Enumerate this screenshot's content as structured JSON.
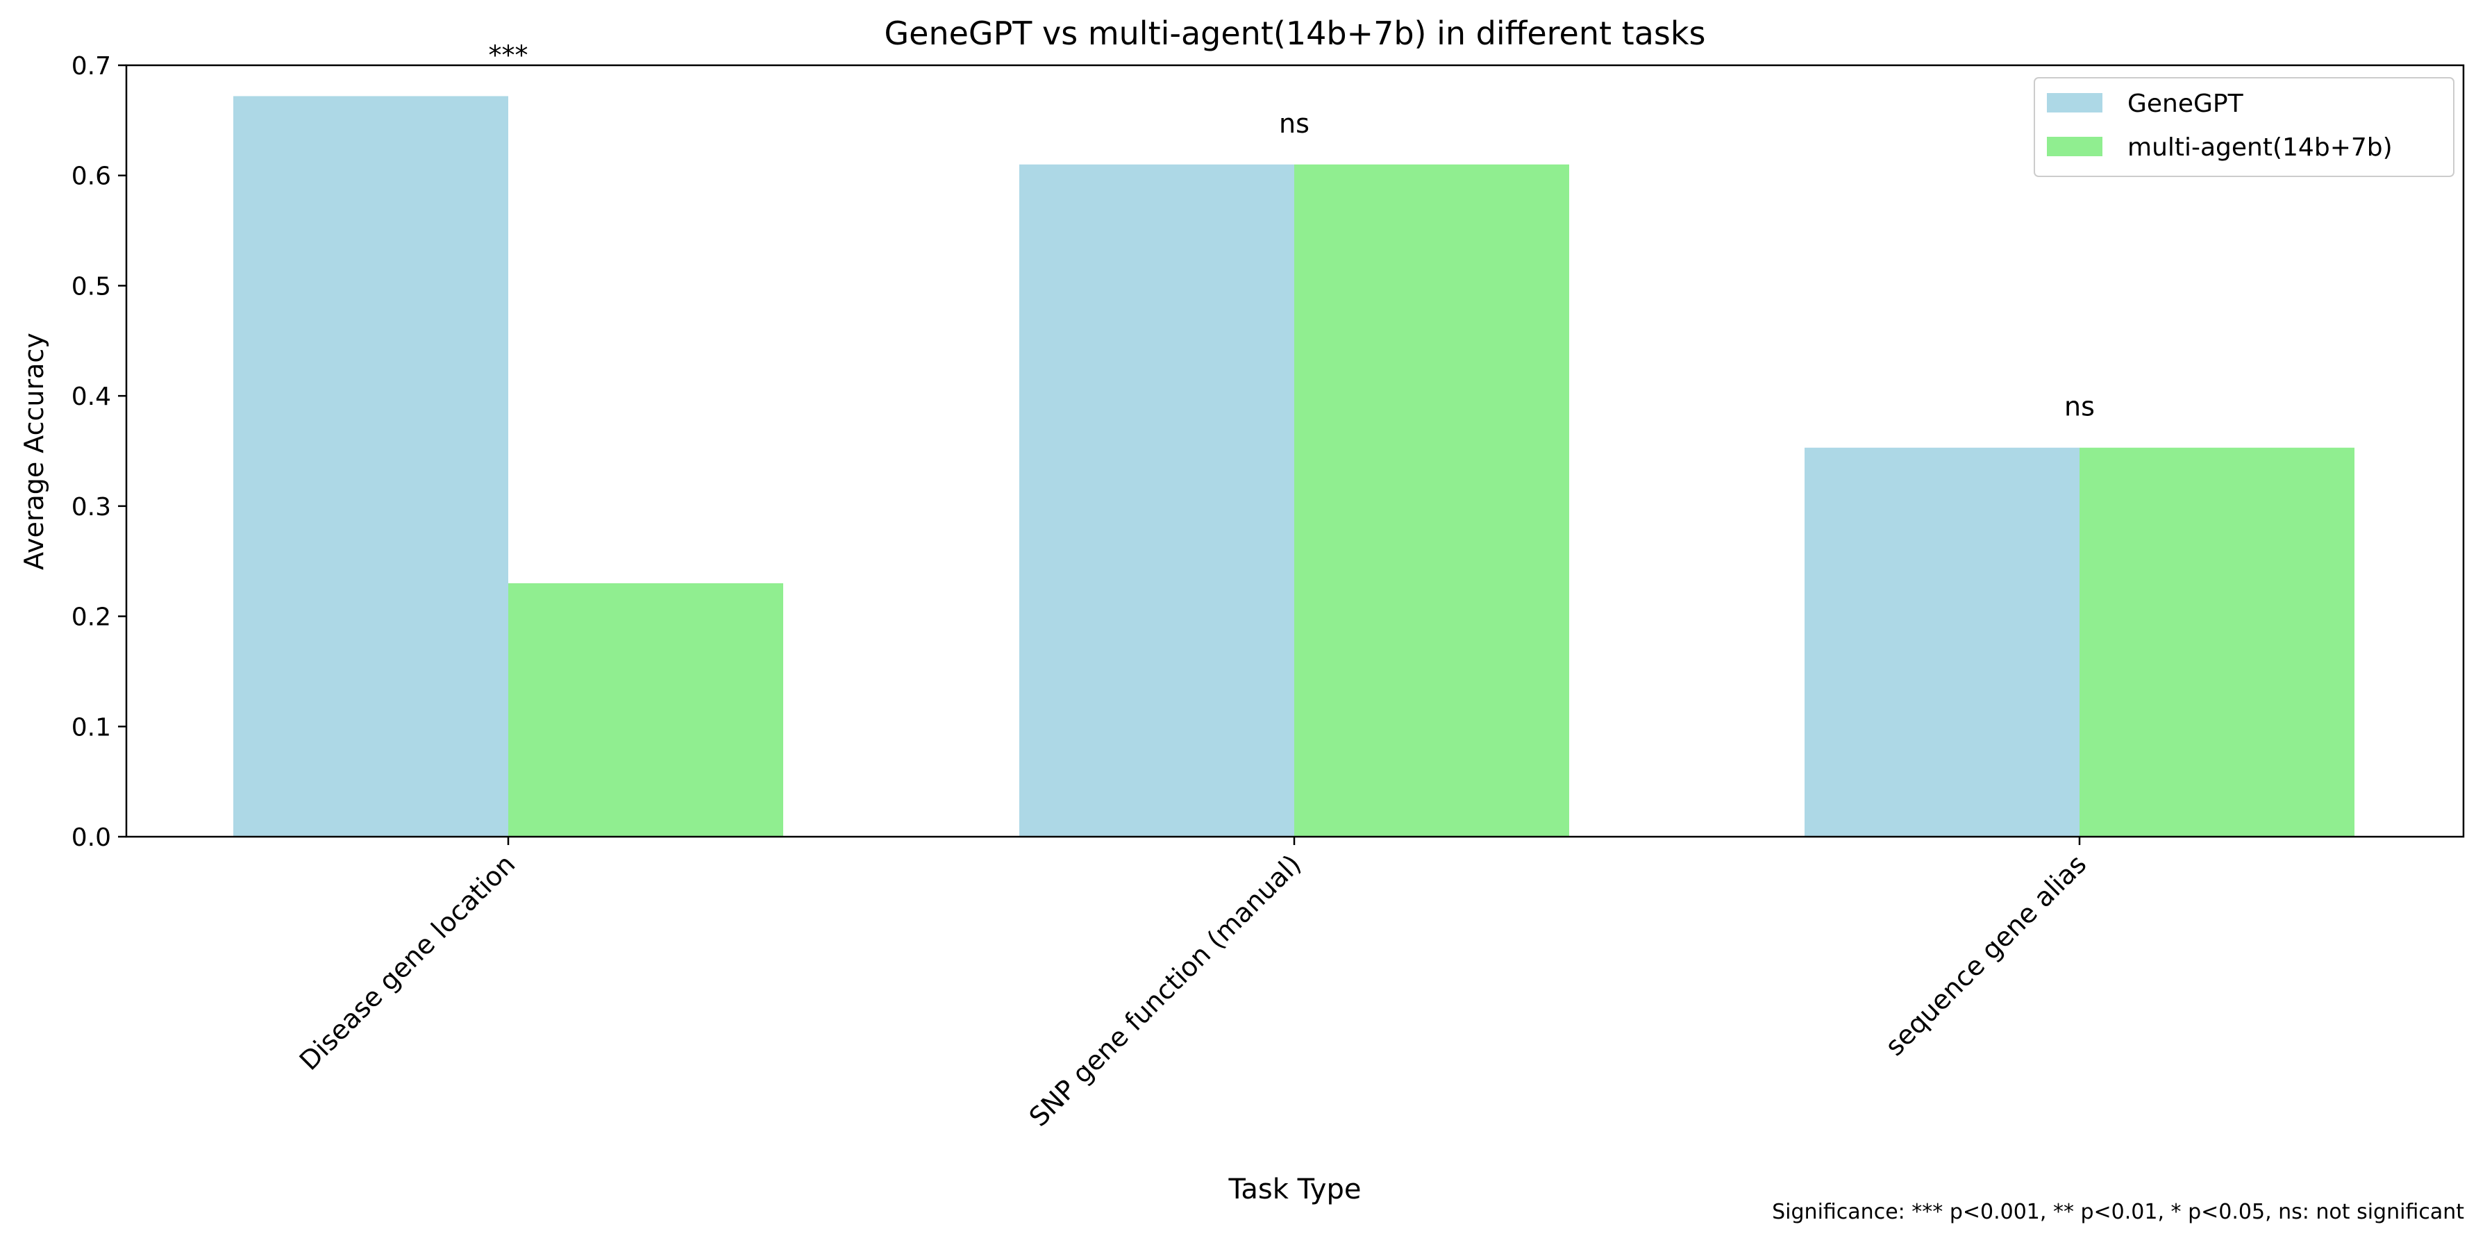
{
  "chart_data": {
    "type": "bar",
    "title": "GeneGPT vs multi-agent(14b+7b) in different tasks",
    "xlabel": "Task Type",
    "ylabel": "Average Accuracy",
    "ylim": [
      0,
      0.7
    ],
    "yticks": [
      "0.0",
      "0.1",
      "0.2",
      "0.3",
      "0.4",
      "0.5",
      "0.6",
      "0.7"
    ],
    "categories": [
      "Disease gene location",
      "SNP gene function (manual)",
      "sequence gene alias"
    ],
    "series": [
      {
        "name": "GeneGPT",
        "color": "#add8e6",
        "values": [
          0.672,
          0.61,
          0.353
        ]
      },
      {
        "name": "multi-agent(14b+7b)",
        "color": "#90ee90",
        "values": [
          0.23,
          0.61,
          0.353
        ]
      }
    ],
    "significance": [
      "***",
      "ns",
      "ns"
    ],
    "legend_position": "top-right",
    "grid": false
  },
  "footnote": "Significance: *** p<0.001, ** p<0.01, * p<0.05, ns: not significant"
}
